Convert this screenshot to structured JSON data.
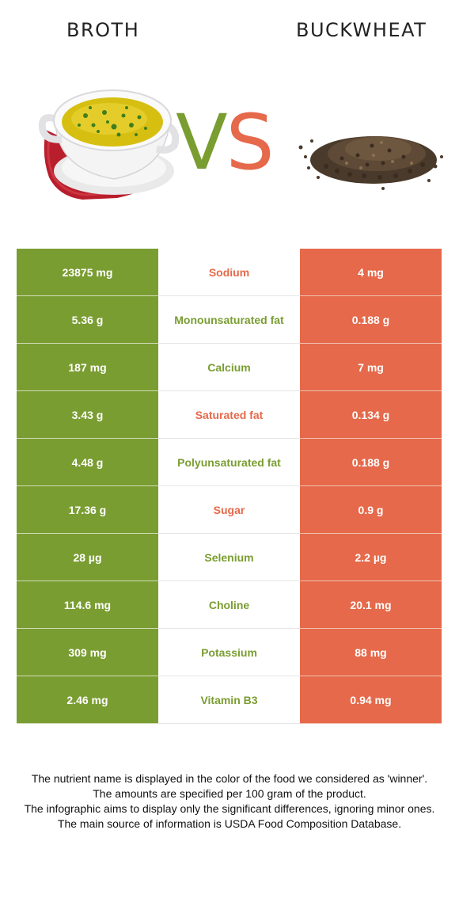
{
  "header": {
    "left_food": "BROTH",
    "right_food": "BUCKWHEAT",
    "vs_v": "V",
    "vs_s": "S"
  },
  "colors": {
    "left_food": "#7a9d32",
    "right_food": "#e5694a"
  },
  "images": {
    "left": "soup-bowl-image",
    "right": "buckwheat-pile-image"
  },
  "rows": [
    {
      "left": "23875 mg",
      "nutrient": "Sodium",
      "right": "4 mg",
      "winner": "right"
    },
    {
      "left": "5.36 g",
      "nutrient": "Monounsaturated fat",
      "right": "0.188 g",
      "winner": "left"
    },
    {
      "left": "187 mg",
      "nutrient": "Calcium",
      "right": "7 mg",
      "winner": "left"
    },
    {
      "left": "3.43 g",
      "nutrient": "Saturated fat",
      "right": "0.134 g",
      "winner": "right"
    },
    {
      "left": "4.48 g",
      "nutrient": "Polyunsaturated fat",
      "right": "0.188 g",
      "winner": "left"
    },
    {
      "left": "17.36 g",
      "nutrient": "Sugar",
      "right": "0.9 g",
      "winner": "right"
    },
    {
      "left": "28 µg",
      "nutrient": "Selenium",
      "right": "2.2 µg",
      "winner": "left"
    },
    {
      "left": "114.6 mg",
      "nutrient": "Choline",
      "right": "20.1 mg",
      "winner": "left"
    },
    {
      "left": "309 mg",
      "nutrient": "Potassium",
      "right": "88 mg",
      "winner": "left"
    },
    {
      "left": "2.46 mg",
      "nutrient": "Vitamin B3",
      "right": "0.94 mg",
      "winner": "left"
    }
  ],
  "footer": {
    "line1": "The nutrient name is displayed in the color of the food we considered as 'winner'.",
    "line2": "The amounts are specified per 100 gram of the product.",
    "line3": "The infographic aims to display only the significant differences, ignoring minor ones.",
    "line4": "The main source of information is USDA Food Composition Database."
  }
}
